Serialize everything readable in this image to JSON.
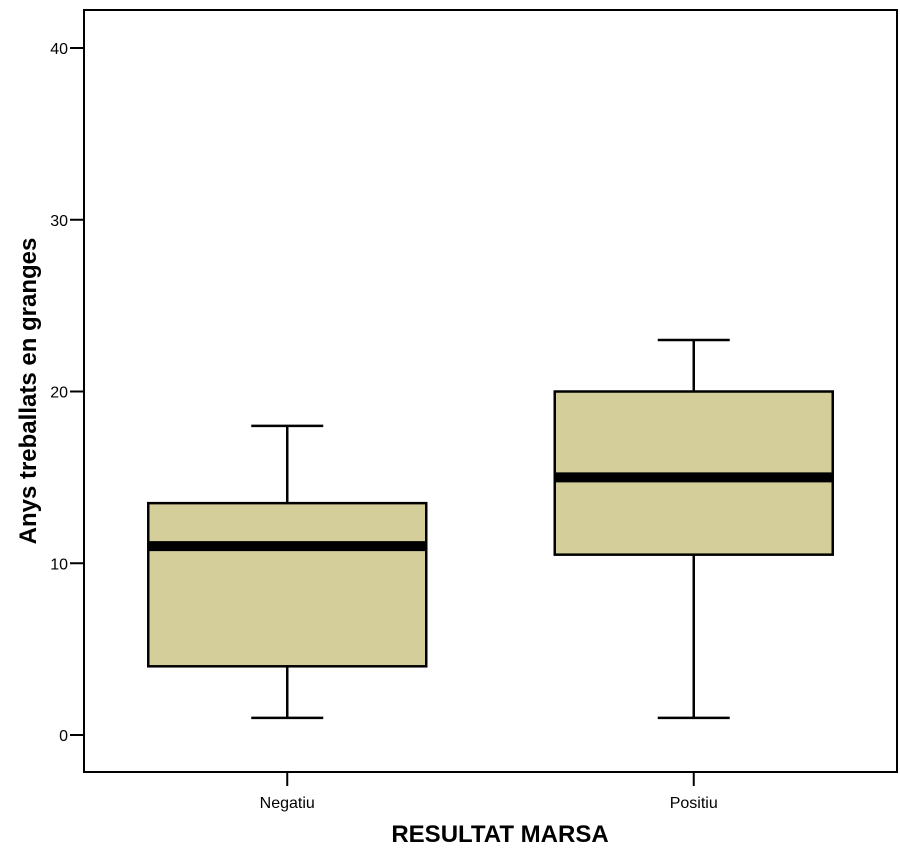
{
  "chart_data": {
    "type": "box",
    "xlabel": "RESULTAT MARSA",
    "ylabel": "Anys treballats en granges",
    "ylim": [
      -2,
      42
    ],
    "yticks": [
      0,
      10,
      20,
      30,
      40
    ],
    "categories": [
      "Negatiu",
      "Positiu"
    ],
    "boxes": [
      {
        "category": "Negatiu",
        "min": 1,
        "q1": 4,
        "median": 11,
        "q3": 13.5,
        "max": 18
      },
      {
        "category": "Positiu",
        "min": 1,
        "q1": 10.5,
        "median": 15,
        "q3": 20,
        "max": 23
      }
    ],
    "box_color": "#d3ce9a",
    "grid": false
  }
}
